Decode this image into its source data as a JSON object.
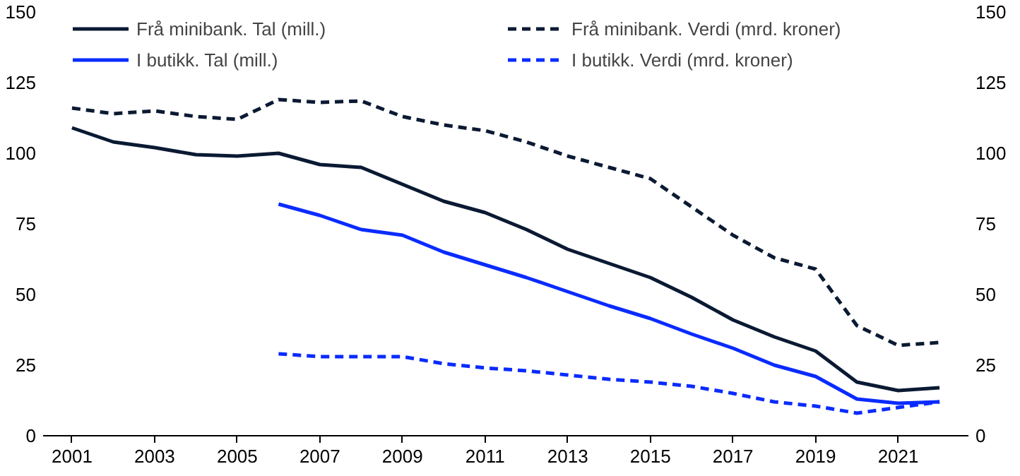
{
  "chart_data": {
    "type": "line",
    "xlim": [
      2000.3,
      2022.7
    ],
    "xticks": [
      2001,
      2003,
      2005,
      2007,
      2009,
      2011,
      2013,
      2015,
      2017,
      2019,
      2021
    ],
    "ylim": [
      0,
      150
    ],
    "yticks": [
      0,
      25,
      50,
      75,
      100,
      125,
      150
    ],
    "y2lim": [
      0,
      150
    ],
    "y2ticks": [
      0,
      25,
      50,
      75,
      100,
      125,
      150
    ],
    "grid": false,
    "legend": "top",
    "series": [
      {
        "name": "Frå minibank. Tal (mill.)",
        "color": "#0b1a33",
        "line_style": "solid",
        "x": [
          2001,
          2002,
          2003,
          2004,
          2005,
          2006,
          2007,
          2008,
          2009,
          2010,
          2011,
          2012,
          2013,
          2014,
          2015,
          2016,
          2017,
          2018,
          2019,
          2020,
          2021,
          2022
        ],
        "values": [
          109,
          104,
          102,
          99.5,
          99,
          100,
          96,
          95,
          89,
          83,
          79,
          73,
          66,
          61,
          56,
          49,
          41,
          35,
          30,
          19,
          16,
          17
        ]
      },
      {
        "name": "I butikk. Tal (mill.)",
        "color": "#0a2bff",
        "line_style": "solid",
        "x": [
          2006,
          2007,
          2008,
          2009,
          2010,
          2011,
          2012,
          2013,
          2014,
          2015,
          2016,
          2017,
          2018,
          2019,
          2020,
          2021,
          2022
        ],
        "values": [
          82,
          78,
          73,
          71,
          65,
          60.5,
          56,
          51,
          46,
          41.5,
          36,
          31,
          25,
          21,
          13,
          11.5,
          12
        ]
      },
      {
        "name": "Frå minibank. Verdi (mrd. kroner)",
        "color": "#0b1a33",
        "line_style": "dashed",
        "x": [
          2001,
          2002,
          2003,
          2004,
          2005,
          2006,
          2007,
          2008,
          2009,
          2010,
          2011,
          2012,
          2013,
          2014,
          2015,
          2016,
          2017,
          2018,
          2019,
          2020,
          2021,
          2022
        ],
        "values": [
          116,
          114,
          115,
          113,
          112,
          119,
          118,
          118.5,
          113,
          110,
          108,
          104,
          99,
          95,
          91,
          81,
          71,
          63,
          59,
          39,
          32,
          33
        ]
      },
      {
        "name": "I butikk. Verdi (mrd. kroner)",
        "color": "#0a2bff",
        "line_style": "dashed",
        "x": [
          2006,
          2007,
          2008,
          2009,
          2010,
          2011,
          2012,
          2013,
          2014,
          2015,
          2016,
          2017,
          2018,
          2019,
          2020,
          2021,
          2022
        ],
        "values": [
          29,
          28,
          28,
          28,
          25.5,
          24,
          23,
          21.5,
          20,
          19,
          17.5,
          15,
          12,
          10.5,
          8,
          10,
          12
        ]
      }
    ]
  }
}
